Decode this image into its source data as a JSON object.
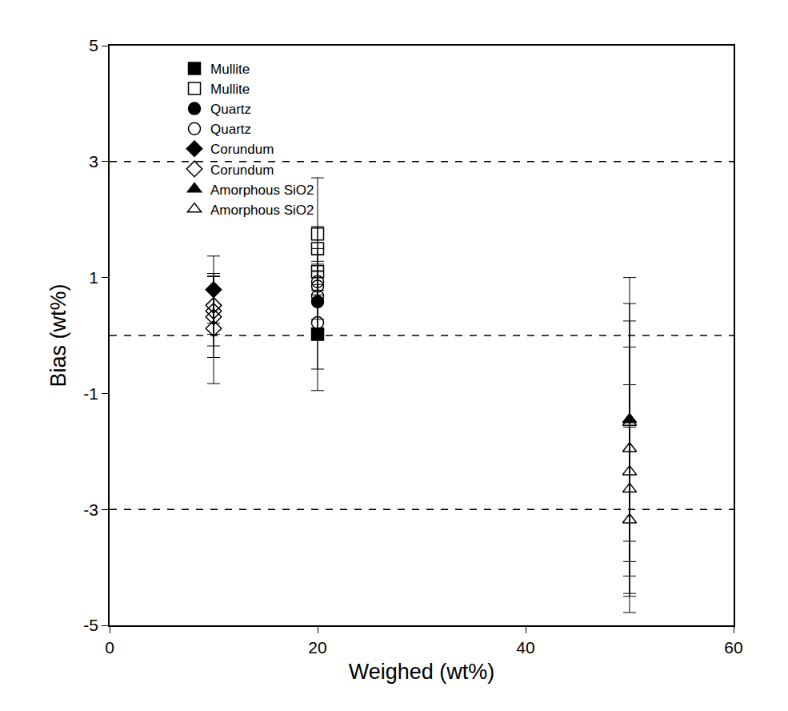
{
  "chart_data": {
    "type": "scatter",
    "x_label": "Weighed (wt%)",
    "y_label": "Bias (wt%)",
    "xlim": [
      0,
      60
    ],
    "xticks": [
      0,
      20,
      40,
      60
    ],
    "ylim": [
      -5,
      5
    ],
    "yticks": [
      -5,
      -3,
      -1,
      1,
      3,
      5
    ],
    "grid": false,
    "legend": "top",
    "hlines": [
      3,
      0,
      -3
    ],
    "series": [
      {
        "name": "Mullite",
        "color": "#000000",
        "marker": "square",
        "x": [
          20
        ],
        "values": [
          0.02
        ],
        "error": [
          0.6
        ]
      },
      {
        "name": "Mullite",
        "color": "#000000",
        "marker": "square-open",
        "x": [
          20,
          20,
          20
        ],
        "values": [
          1.75,
          1.5,
          1.1
        ],
        "error": [
          0.97,
          0.38,
          0.4
        ]
      },
      {
        "name": "Quartz",
        "color": "#000000",
        "marker": "circle",
        "x": [
          20
        ],
        "values": [
          0.58
        ],
        "error": [
          0.3
        ]
      },
      {
        "name": "Quartz",
        "color": "#000000",
        "marker": "circle-open",
        "x": [
          20,
          20,
          20,
          20
        ],
        "values": [
          0.93,
          0.85,
          0.68,
          0.22
        ],
        "error": [
          0.35,
          0.25,
          0.55,
          1.17
        ]
      },
      {
        "name": "Corundum",
        "color": "#000000",
        "marker": "diamond",
        "x": [
          10
        ],
        "values": [
          0.79
        ],
        "error": [
          0.58
        ]
      },
      {
        "name": "Corundum",
        "color": "#000000",
        "marker": "diamond-open",
        "x": [
          10,
          10,
          10,
          10
        ],
        "values": [
          0.52,
          0.42,
          0.32,
          0.12
        ],
        "error": [
          0.5,
          0.6,
          0.7,
          0.95
        ]
      },
      {
        "name": "Amorphous SiO2",
        "color": "#000000",
        "marker": "triangle-up",
        "x": [
          50
        ],
        "values": [
          -1.45
        ],
        "error": [
          2.45
        ]
      },
      {
        "name": "Amorphous SiO2",
        "color": "#000000",
        "marker": "triangle-up-open",
        "x": [
          50,
          50,
          50,
          50,
          50
        ],
        "values": [
          -1.5,
          -1.95,
          -2.35,
          -2.65,
          -3.18
        ],
        "error": [
          2.05,
          2.2,
          2.15,
          1.8,
          1.6
        ]
      }
    ]
  }
}
